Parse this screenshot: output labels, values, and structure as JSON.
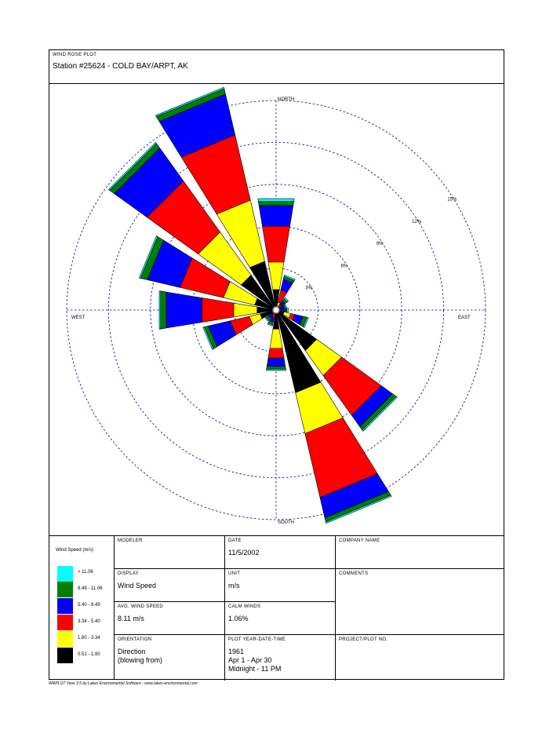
{
  "header": {
    "plot_type": "WIND ROSE PLOT",
    "station": "Station #25624 - COLD BAY/ARPT, AK"
  },
  "chart_data": {
    "type": "wind-rose",
    "direction_labels": [
      "NORTH",
      "EAST",
      "SOUTH",
      "WEST"
    ],
    "ring_labels": [
      "3%",
      "6%",
      "9%",
      "12%",
      "15%"
    ],
    "ring_values": [
      3,
      6,
      9,
      12,
      15
    ],
    "bins": [
      {
        "label": "> 11.06",
        "color": "#00ffff"
      },
      {
        "label": "8.49 - 11.06",
        "color": "#007f00"
      },
      {
        "label": "5.40 - 8.49",
        "color": "#0000ff"
      },
      {
        "label": "3.34 - 5.40",
        "color": "#ff0000"
      },
      {
        "label": "1.80 - 3.34",
        "color": "#ffff00"
      },
      {
        "label": "0.51 - 1.80",
        "color": "#000000"
      }
    ],
    "directions": [
      {
        "dir": "N",
        "values": [
          0.2,
          0.3,
          1.5,
          2.6,
          2.0,
          1.2
        ]
      },
      {
        "dir": "NNE",
        "values": [
          0.1,
          0.2,
          0.8,
          0.9,
          0.3,
          0.0
        ]
      },
      {
        "dir": "NE",
        "values": [
          0.1,
          0.2,
          0.3,
          0.2,
          0.0,
          0.0
        ]
      },
      {
        "dir": "ENE",
        "values": [
          0.1,
          0.1,
          0.3,
          0.0,
          0.0,
          0.0
        ]
      },
      {
        "dir": "E",
        "values": [
          0.1,
          0.1,
          0.3,
          0.1,
          0.0,
          0.0
        ]
      },
      {
        "dir": "ESE",
        "values": [
          0.1,
          0.3,
          0.6,
          0.3,
          0.5,
          0.3
        ]
      },
      {
        "dir": "SE",
        "values": [
          0.1,
          0.3,
          1.0,
          3.5,
          2.2,
          3.3
        ]
      },
      {
        "dir": "SSE",
        "values": [
          0.1,
          0.3,
          1.5,
          4.7,
          3.0,
          5.8
        ]
      },
      {
        "dir": "S",
        "values": [
          0.1,
          0.2,
          0.6,
          0.7,
          1.4,
          1.1
        ]
      },
      {
        "dir": "SSW",
        "values": [
          0.1,
          0.2,
          0.3,
          0.3,
          0.0,
          0.0
        ]
      },
      {
        "dir": "SW",
        "values": [
          0.1,
          0.2,
          0.3,
          0.1,
          0.0,
          0.0
        ]
      },
      {
        "dir": "WSW",
        "values": [
          0.1,
          0.3,
          1.6,
          1.4,
          0.8,
          0.9
        ]
      },
      {
        "dir": "W",
        "values": [
          0.1,
          0.4,
          2.6,
          2.3,
          1.7,
          1.1
        ]
      },
      {
        "dir": "WNW",
        "values": [
          0.1,
          0.5,
          2.4,
          3.2,
          2.3,
          1.3
        ]
      },
      {
        "dir": "NW",
        "values": [
          0.1,
          0.4,
          2.9,
          4.5,
          3.8,
          2.8
        ]
      },
      {
        "dir": "NNW",
        "values": [
          0.1,
          0.4,
          3.0,
          4.8,
          4.5,
          3.3
        ]
      }
    ]
  },
  "legend": {
    "title": "Wind Speed (m/s)",
    "items": [
      "> 11.06",
      "8.49 - 11.06",
      "5.40 - 8.49",
      "3.34 - 5.40",
      "1.80 - 3.34",
      "0.51 - 1.80"
    ]
  },
  "info": {
    "modeler_label": "MODELER",
    "modeler_value": "",
    "date_label": "DATE",
    "date_value": "11/5/2002",
    "company_label": "COMPANY NAME",
    "company_value": "",
    "display_label": "DISPLAY",
    "display_value": "Wind Speed",
    "unit_label": "UNIT",
    "unit_value": "m/s",
    "comments_label": "COMMENTS",
    "comments_value": "",
    "avg_label": "AVG. WIND SPEED",
    "avg_value": "8.11 m/s",
    "calm_label": "CALM WINDS",
    "calm_value": "1.06%",
    "orientation_label": "ORIENTATION",
    "orientation_value": "Direction\n(blowing from)",
    "plot_year_label": "PLOT YEAR-DATE-TIME",
    "plot_year_value": "1961\nApr 1 - Apr 30\nMidnight - 11 PM",
    "project_label": "PROJECT/PLOT NO.",
    "project_value": ""
  },
  "footer": "WRPLOT View 3.5 by Lakes Environmental Software - www.lakes-environmental.com"
}
